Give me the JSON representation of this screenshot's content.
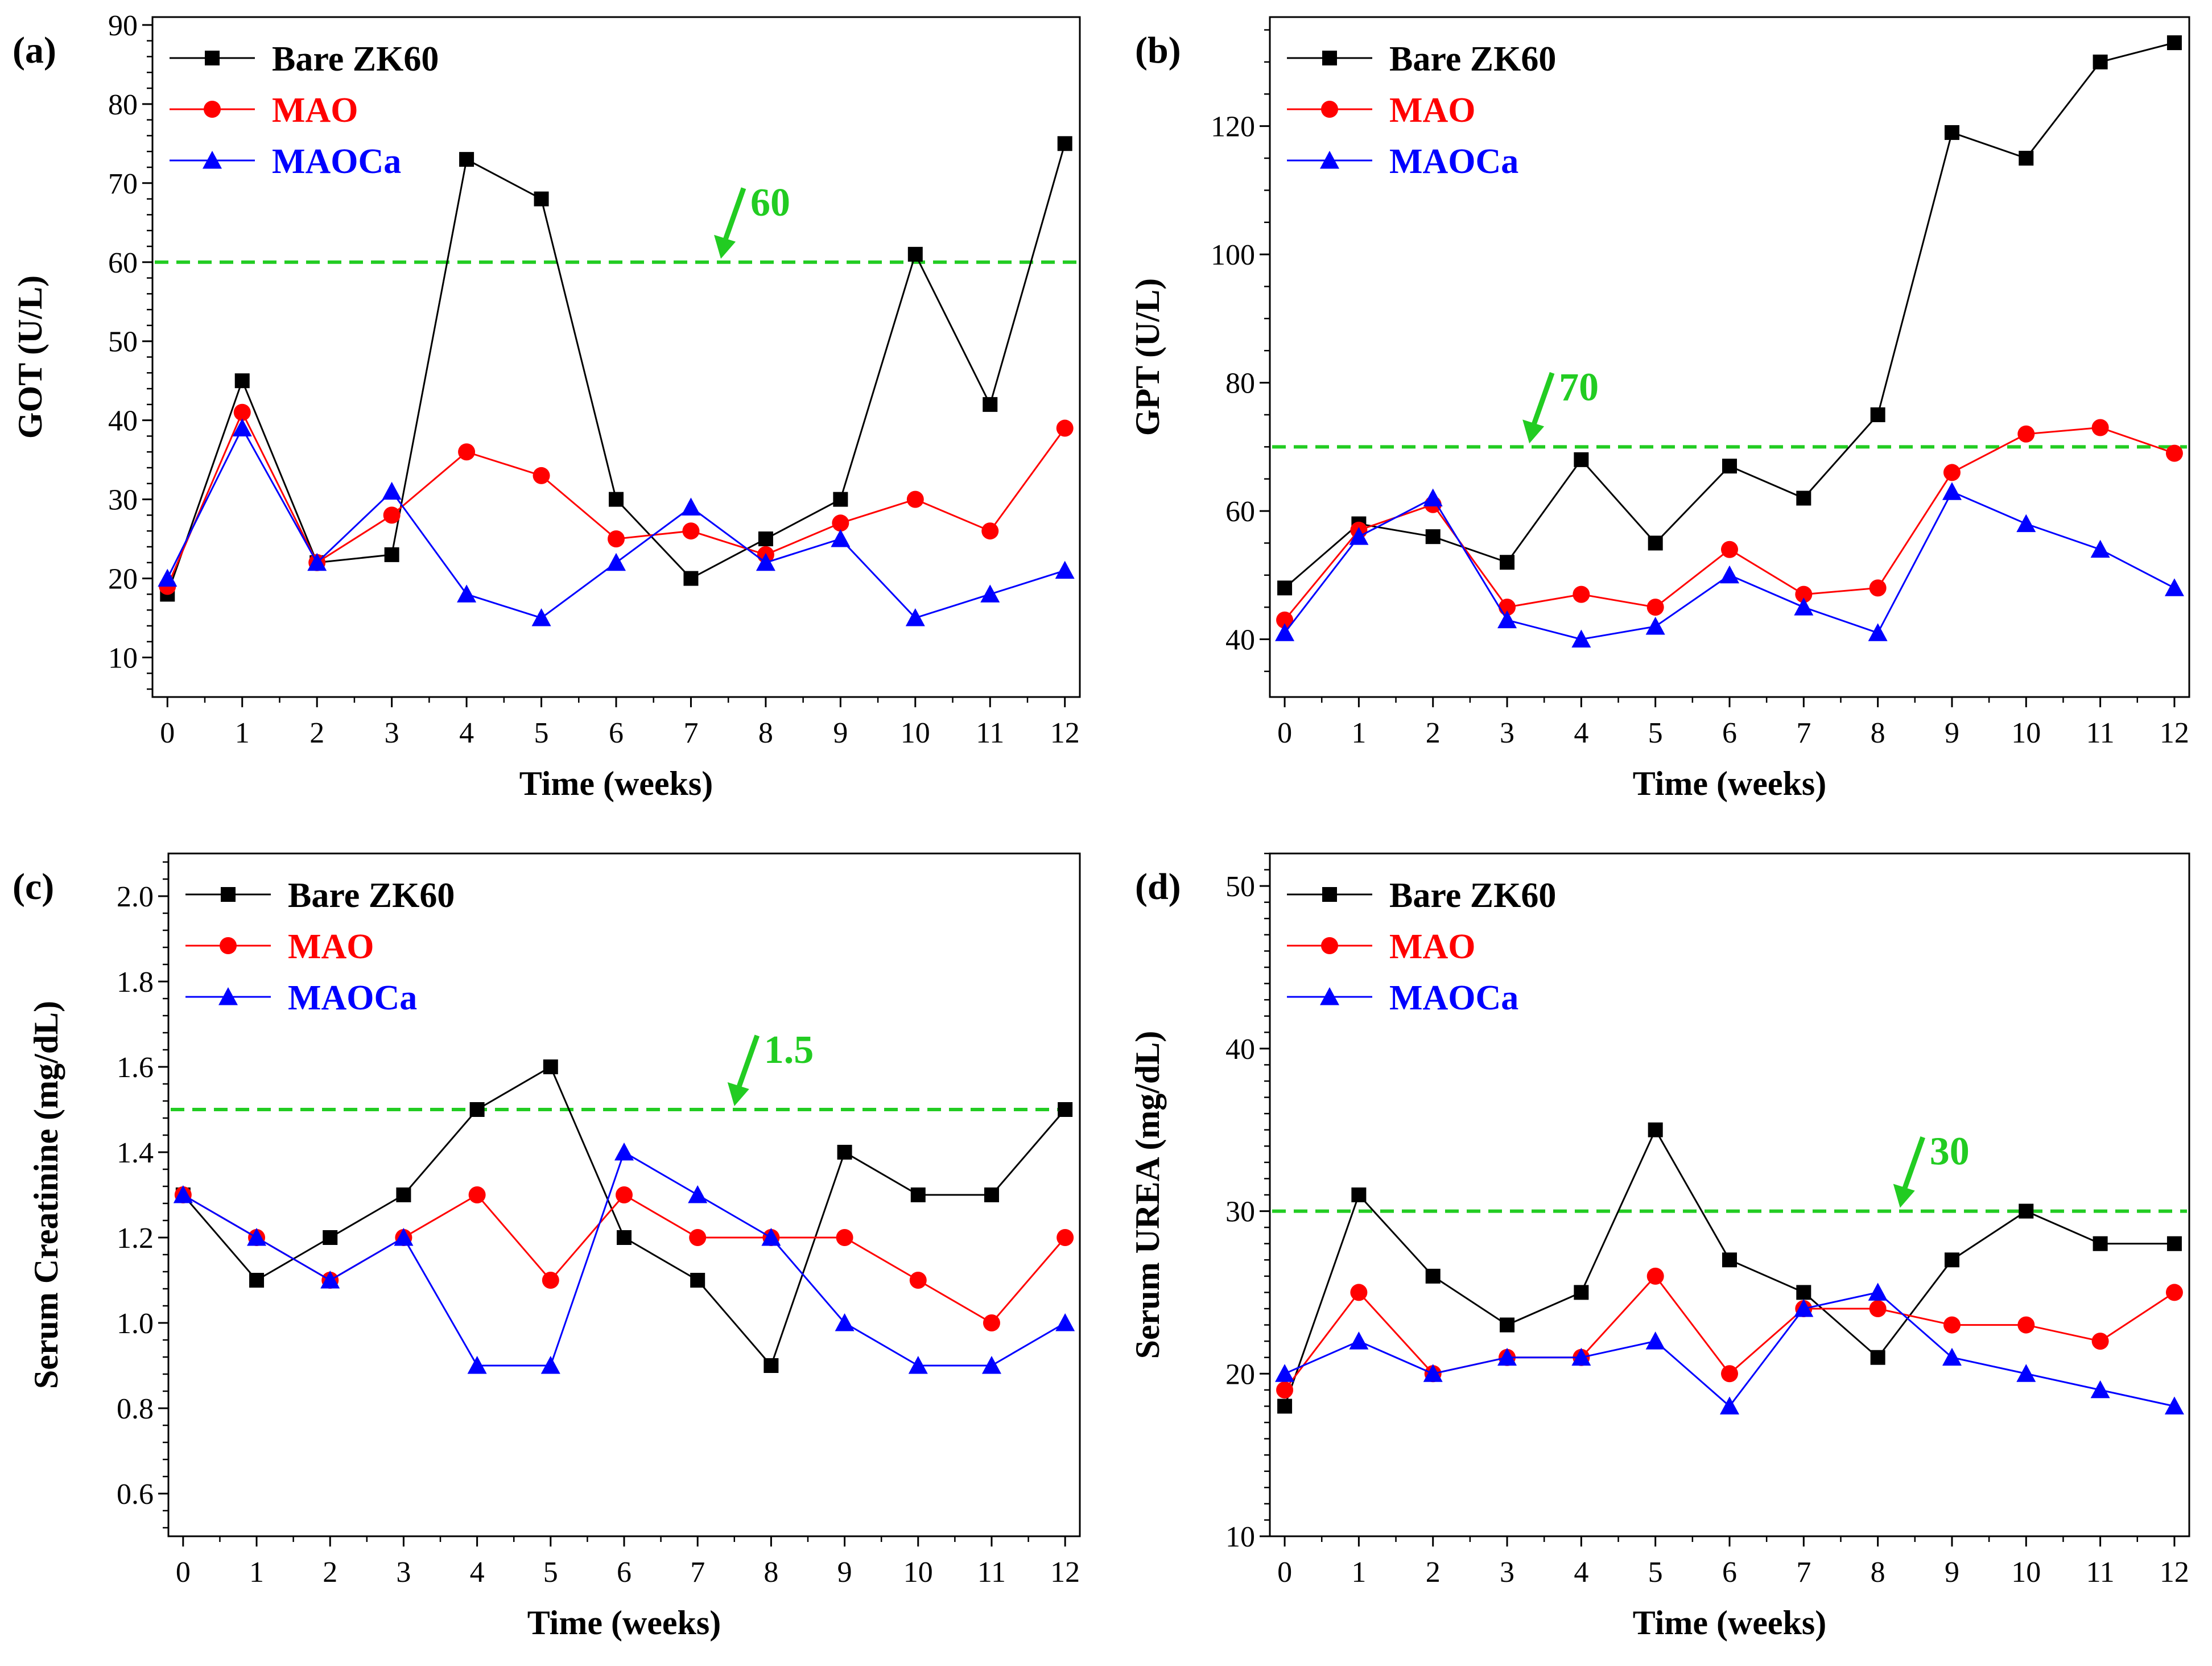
{
  "colors": {
    "bare": "#000000",
    "mao": "#ff0000",
    "maoca": "#0000ff",
    "threshold": "#22cc22",
    "axis": "#000000"
  },
  "chart_data": [
    {
      "type": "line",
      "panel": "(a)",
      "xlabel": "Time (weeks)",
      "ylabel": "GOT (U/L)",
      "x": [
        0,
        1,
        2,
        3,
        4,
        5,
        6,
        7,
        8,
        9,
        10,
        11,
        12
      ],
      "xlim": [
        -0.2,
        12.2
      ],
      "ylim": [
        5,
        91
      ],
      "yticks": [
        10,
        20,
        30,
        40,
        50,
        60,
        70,
        80,
        90
      ],
      "ytick_labels": [
        "10",
        "20",
        "30",
        "40",
        "50",
        "60",
        "70",
        "80",
        "90"
      ],
      "minor_y_step": 2,
      "series": [
        {
          "name": "Bare ZK60",
          "key": "bare",
          "marker": "square",
          "values": [
            18,
            45,
            22,
            23,
            73,
            68,
            30,
            20,
            25,
            30,
            61,
            42,
            75
          ]
        },
        {
          "name": "MAO",
          "key": "mao",
          "marker": "circle",
          "values": [
            19,
            41,
            22,
            28,
            36,
            33,
            25,
            26,
            23,
            27,
            30,
            26,
            39
          ]
        },
        {
          "name": "MAOCa",
          "key": "maoca",
          "marker": "triangle",
          "values": [
            20,
            39,
            22,
            31,
            18,
            15,
            22,
            29,
            22,
            25,
            15,
            18,
            21
          ]
        }
      ],
      "threshold": {
        "value": 60,
        "label": "60",
        "label_x": 7.4
      }
    },
    {
      "type": "line",
      "panel": "(b)",
      "xlabel": "Time (weeks)",
      "ylabel": "GPT (U/L)",
      "x": [
        0,
        1,
        2,
        3,
        4,
        5,
        6,
        7,
        8,
        9,
        10,
        11,
        12
      ],
      "xlim": [
        -0.2,
        12.2
      ],
      "ylim": [
        31,
        137
      ],
      "yticks": [
        40,
        60,
        80,
        100,
        120
      ],
      "ytick_labels": [
        "40",
        "60",
        "80",
        "100",
        "120"
      ],
      "minor_y_step": 5,
      "series": [
        {
          "name": "Bare ZK60",
          "key": "bare",
          "marker": "square",
          "values": [
            48,
            58,
            56,
            52,
            68,
            55,
            67,
            62,
            75,
            119,
            115,
            130,
            133
          ]
        },
        {
          "name": "MAO",
          "key": "mao",
          "marker": "circle",
          "values": [
            43,
            57,
            61,
            45,
            47,
            45,
            54,
            47,
            48,
            66,
            72,
            73,
            69
          ]
        },
        {
          "name": "MAOCa",
          "key": "maoca",
          "marker": "triangle",
          "values": [
            41,
            56,
            62,
            43,
            40,
            42,
            50,
            45,
            41,
            63,
            58,
            54,
            48
          ]
        }
      ],
      "threshold": {
        "value": 70,
        "label": "70",
        "label_x": 3.3
      }
    },
    {
      "type": "line",
      "panel": "(c)",
      "xlabel": "Time (weeks)",
      "ylabel": "Serum Creatinine (mg/dL)",
      "x": [
        0,
        1,
        2,
        3,
        4,
        5,
        6,
        7,
        8,
        9,
        10,
        11,
        12
      ],
      "xlim": [
        -0.2,
        12.2
      ],
      "ylim": [
        0.5,
        2.1
      ],
      "yticks": [
        0.6,
        0.8,
        1.0,
        1.2,
        1.4,
        1.6,
        1.8,
        2.0
      ],
      "ytick_labels": [
        "0.6",
        "0.8",
        "1.0",
        "1.2",
        "1.4",
        "1.6",
        "1.8",
        "2.0"
      ],
      "minor_y_step": 0.04,
      "series": [
        {
          "name": "Bare ZK60",
          "key": "bare",
          "marker": "square",
          "values": [
            1.3,
            1.1,
            1.2,
            1.3,
            1.5,
            1.6,
            1.2,
            1.1,
            0.9,
            1.4,
            1.3,
            1.3,
            1.5
          ]
        },
        {
          "name": "MAO",
          "key": "mao",
          "marker": "circle",
          "values": [
            1.3,
            1.2,
            1.1,
            1.2,
            1.3,
            1.1,
            1.3,
            1.2,
            1.2,
            1.2,
            1.1,
            1.0,
            1.2
          ]
        },
        {
          "name": "MAOCa",
          "key": "maoca",
          "marker": "triangle",
          "values": [
            1.3,
            1.2,
            1.1,
            1.2,
            0.9,
            0.9,
            1.4,
            1.3,
            1.2,
            1.0,
            0.9,
            0.9,
            1.0
          ]
        }
      ],
      "threshold": {
        "value": 1.5,
        "label": "1.5",
        "label_x": 7.5
      }
    },
    {
      "type": "line",
      "panel": "(d)",
      "xlabel": "Time (weeks)",
      "ylabel": "Serum UREA (mg/dL)",
      "x": [
        0,
        1,
        2,
        3,
        4,
        5,
        6,
        7,
        8,
        9,
        10,
        11,
        12
      ],
      "xlim": [
        -0.2,
        12.2
      ],
      "ylim": [
        10,
        52
      ],
      "yticks": [
        10,
        20,
        30,
        40,
        50
      ],
      "ytick_labels": [
        "10",
        "20",
        "30",
        "40",
        "50"
      ],
      "minor_y_step": 1,
      "series": [
        {
          "name": "Bare ZK60",
          "key": "bare",
          "marker": "square",
          "values": [
            18,
            31,
            26,
            23,
            25,
            35,
            27,
            25,
            21,
            27,
            30,
            28,
            28
          ]
        },
        {
          "name": "MAO",
          "key": "mao",
          "marker": "circle",
          "values": [
            19,
            25,
            20,
            21,
            21,
            26,
            20,
            24,
            24,
            23,
            23,
            22,
            25
          ]
        },
        {
          "name": "MAOCa",
          "key": "maoca",
          "marker": "triangle",
          "values": [
            20,
            22,
            20,
            21,
            21,
            22,
            18,
            24,
            25,
            21,
            20,
            19,
            18
          ]
        }
      ],
      "threshold": {
        "value": 30,
        "label": "30",
        "label_x": 8.3
      }
    }
  ]
}
